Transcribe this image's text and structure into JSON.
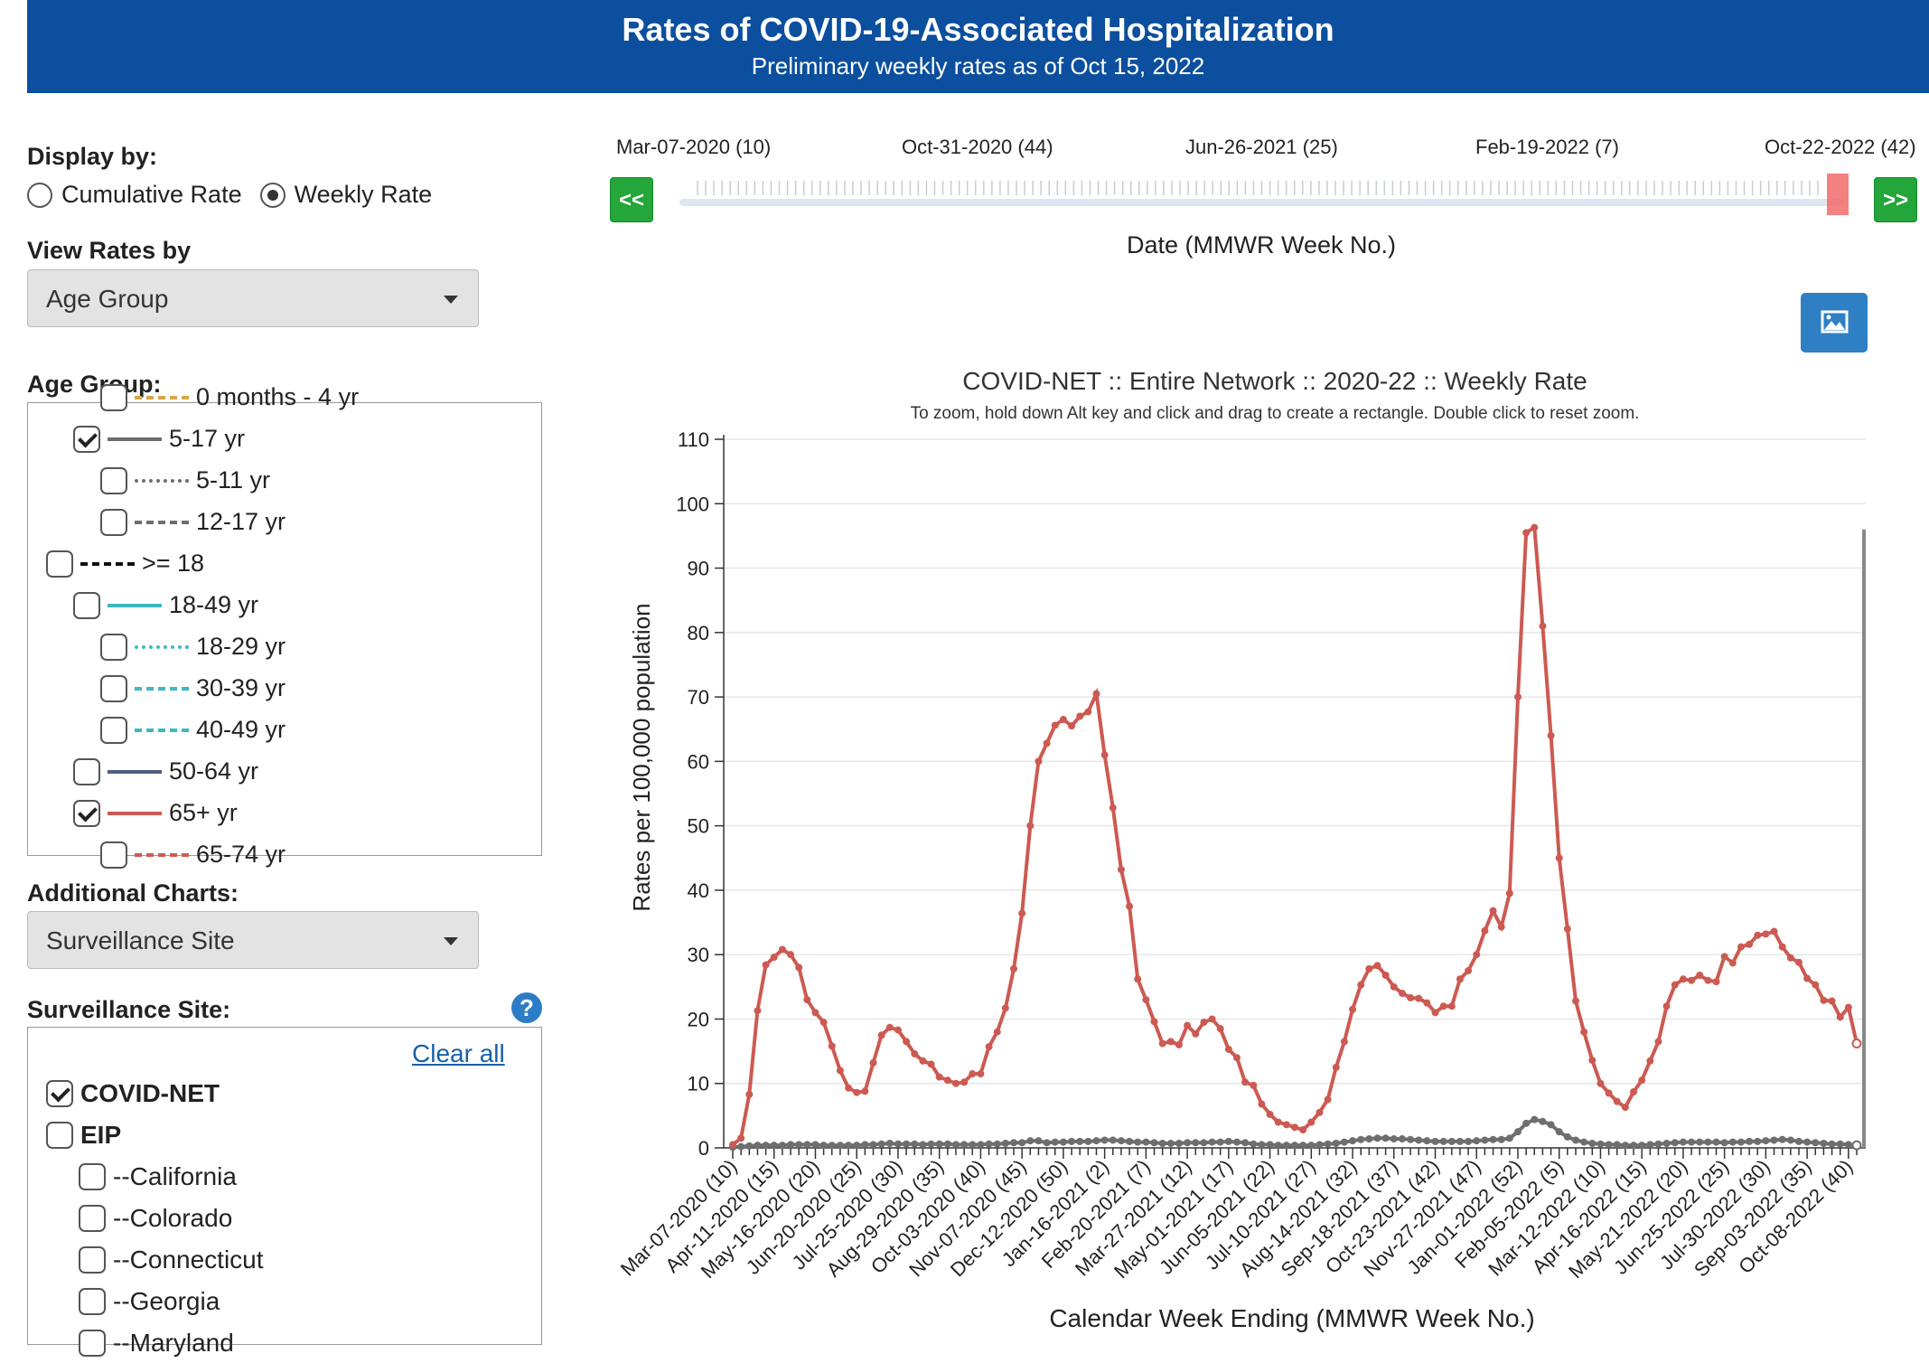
{
  "header": {
    "title": "Rates of COVID-19-Associated Hospitalization",
    "subtitle": "Preliminary weekly rates as of Oct 15, 2022"
  },
  "display_by": {
    "label": "Display by:",
    "options": [
      "Cumulative Rate",
      "Weekly Rate"
    ],
    "selected": "Weekly Rate"
  },
  "view_rates": {
    "label": "View Rates by",
    "value": "Age Group"
  },
  "age_group": {
    "label": "Age Group:",
    "items": [
      {
        "label": "0 months - 4 yr",
        "checked": false,
        "color": "#d9a64a",
        "style": "dashed"
      },
      {
        "label": "5-17 yr",
        "checked": true,
        "color": "#6e6e6e",
        "style": "solid"
      },
      {
        "label": "5-11 yr",
        "checked": false,
        "color": "#6e6e6e",
        "style": "dotted"
      },
      {
        "label": "12-17 yr",
        "checked": false,
        "color": "#6e6e6e",
        "style": "dashdot"
      },
      {
        "label": ">= 18",
        "checked": false,
        "color": "#111111",
        "style": "dashdot"
      },
      {
        "label": "18-49 yr",
        "checked": false,
        "color": "#3fb7c4",
        "style": "solid"
      },
      {
        "label": "18-29 yr",
        "checked": false,
        "color": "#3fb7c4",
        "style": "dotted"
      },
      {
        "label": "30-39 yr",
        "checked": false,
        "color": "#3fb7c4",
        "style": "dashdot"
      },
      {
        "label": "40-49 yr",
        "checked": false,
        "color": "#3fb7c4",
        "style": "dashed"
      },
      {
        "label": "50-64 yr",
        "checked": false,
        "color": "#4f5e7e",
        "style": "solid"
      },
      {
        "label": "65+ yr",
        "checked": true,
        "color": "#cc5a52",
        "style": "solid"
      },
      {
        "label": "65-74 yr",
        "checked": false,
        "color": "#cc5a52",
        "style": "dashed"
      }
    ]
  },
  "additional_charts": {
    "label": "Additional Charts:",
    "value": "Surveillance Site"
  },
  "surveillance_site": {
    "label": "Surveillance Site:",
    "clear_all": "Clear all",
    "help": "?",
    "items": [
      {
        "label": "COVID-NET",
        "checked": true
      },
      {
        "label": "EIP",
        "checked": false
      },
      {
        "label": "--California",
        "checked": false
      },
      {
        "label": "--Colorado",
        "checked": false
      },
      {
        "label": "--Connecticut",
        "checked": false
      },
      {
        "label": "--Georgia",
        "checked": false
      },
      {
        "label": "--Maryland",
        "checked": false
      }
    ]
  },
  "timeline": {
    "labels": [
      "Mar-07-2020 (10)",
      "Oct-31-2020 (44)",
      "Jun-26-2021 (25)",
      "Feb-19-2022 (7)",
      "Oct-22-2022 (42)"
    ],
    "prev": "<<",
    "next": ">>",
    "axis_label": "Date (MMWR Week No.)"
  },
  "chart_data": {
    "type": "line",
    "title": "COVID-NET :: Entire Network :: 2020-22 :: Weekly Rate",
    "subtitle": "To zoom, hold down Alt key and click and drag to create a rectangle. Double click to reset zoom.",
    "xlabel": "Calendar Week Ending (MMWR Week No.)",
    "ylabel": "Rates per 100,000 population",
    "ylim": [
      0,
      110
    ],
    "yticks": [
      0,
      10,
      20,
      30,
      40,
      50,
      60,
      70,
      80,
      90,
      100,
      110
    ],
    "xtick_labels": [
      "Mar-07-2020 (10)",
      "Apr-11-2020 (15)",
      "May-16-2020 (20)",
      "Jun-20-2020 (25)",
      "Jul-25-2020 (30)",
      "Aug-29-2020 (35)",
      "Oct-03-2020 (40)",
      "Nov-07-2020 (45)",
      "Dec-12-2020 (50)",
      "Jan-16-2021 (2)",
      "Feb-20-2021 (7)",
      "Mar-27-2021 (12)",
      "May-01-2021 (17)",
      "Jun-05-2021 (22)",
      "Jul-10-2021 (27)",
      "Aug-14-2021 (32)",
      "Sep-18-2021 (37)",
      "Oct-23-2021 (42)",
      "Nov-27-2021 (47)",
      "Jan-01-2022 (52)",
      "Feb-05-2022 (5)",
      "Mar-12-2022 (10)",
      "Apr-16-2022 (15)",
      "May-21-2022 (20)",
      "Jun-25-2022 (25)",
      "Jul-30-2022 (30)",
      "Sep-03-2022 (35)",
      "Oct-08-2022 (40)"
    ],
    "grid": true,
    "series": [
      {
        "name": "65+ yr",
        "color": "#cc5a52",
        "values": [
          0.5,
          1.5,
          8.3,
          21.3,
          28.4,
          29.6,
          30.8,
          30.0,
          28.0,
          23.0,
          21.0,
          19.5,
          15.8,
          12.0,
          9.3,
          8.6,
          8.8,
          13.2,
          17.5,
          18.7,
          18.3,
          16.5,
          14.6,
          13.5,
          13.0,
          11.0,
          10.5,
          10.0,
          10.2,
          11.5,
          11.5,
          15.7,
          18.0,
          21.7,
          27.8,
          36.4,
          50.0,
          60.0,
          62.8,
          65.6,
          66.5,
          65.5,
          67.0,
          67.7,
          70.5,
          61.0,
          52.8,
          43.2,
          37.5,
          26.2,
          23.0,
          19.6,
          16.2,
          16.5,
          16.0,
          19.0,
          17.7,
          19.5,
          20.0,
          18.5,
          15.3,
          14.0,
          10.2,
          9.7,
          6.8,
          5.2,
          4.0,
          3.6,
          3.2,
          2.8,
          4.0,
          5.5,
          7.5,
          12.5,
          16.5,
          21.5,
          25.3,
          27.8,
          28.3,
          26.8,
          25.0,
          24.0,
          23.3,
          23.2,
          22.5,
          21.0,
          22.0,
          22.0,
          26.2,
          27.5,
          30.0,
          33.7,
          36.8,
          34.3,
          39.5,
          70.0,
          95.5,
          96.3,
          81.0,
          64.0,
          45.0,
          34.0,
          22.8,
          18.0,
          13.6,
          10.0,
          8.5,
          7.2,
          6.3,
          8.7,
          10.5,
          13.5,
          16.5,
          22.0,
          25.3,
          26.2,
          26.0,
          26.8,
          26.0,
          25.8,
          29.7,
          28.7,
          31.2,
          31.6,
          33.0,
          33.2,
          33.6,
          31.2,
          29.5,
          28.8,
          26.3,
          25.3,
          22.9,
          22.8,
          20.3,
          21.8,
          16.2
        ]
      },
      {
        "name": "5-17 yr",
        "color": "#6e6e6e",
        "values": [
          0.1,
          0.2,
          0.3,
          0.4,
          0.4,
          0.4,
          0.4,
          0.5,
          0.5,
          0.5,
          0.5,
          0.4,
          0.4,
          0.4,
          0.4,
          0.4,
          0.5,
          0.5,
          0.6,
          0.7,
          0.6,
          0.6,
          0.6,
          0.5,
          0.6,
          0.6,
          0.6,
          0.5,
          0.5,
          0.5,
          0.5,
          0.6,
          0.6,
          0.7,
          0.8,
          0.8,
          1.1,
          1.1,
          0.8,
          0.9,
          0.9,
          1.0,
          1.0,
          1.0,
          1.1,
          1.2,
          1.2,
          1.1,
          1.0,
          0.9,
          0.9,
          0.8,
          0.7,
          0.7,
          0.7,
          0.8,
          0.8,
          0.8,
          0.9,
          0.9,
          1.0,
          0.9,
          0.8,
          0.6,
          0.5,
          0.5,
          0.4,
          0.4,
          0.4,
          0.4,
          0.4,
          0.5,
          0.6,
          0.7,
          0.9,
          1.1,
          1.3,
          1.4,
          1.5,
          1.5,
          1.4,
          1.4,
          1.3,
          1.2,
          1.1,
          1.0,
          1.0,
          1.0,
          1.0,
          1.0,
          1.1,
          1.2,
          1.3,
          1.3,
          1.5,
          2.5,
          3.8,
          4.4,
          4.1,
          3.6,
          2.5,
          1.7,
          1.2,
          0.9,
          0.7,
          0.6,
          0.5,
          0.5,
          0.4,
          0.4,
          0.4,
          0.5,
          0.6,
          0.7,
          0.8,
          0.9,
          0.9,
          0.9,
          0.9,
          0.9,
          0.8,
          0.9,
          0.9,
          1.0,
          1.0,
          1.1,
          1.2,
          1.3,
          1.2,
          1.0,
          0.9,
          0.8,
          0.7,
          0.6,
          0.6,
          0.5,
          0.4
        ]
      }
    ]
  }
}
